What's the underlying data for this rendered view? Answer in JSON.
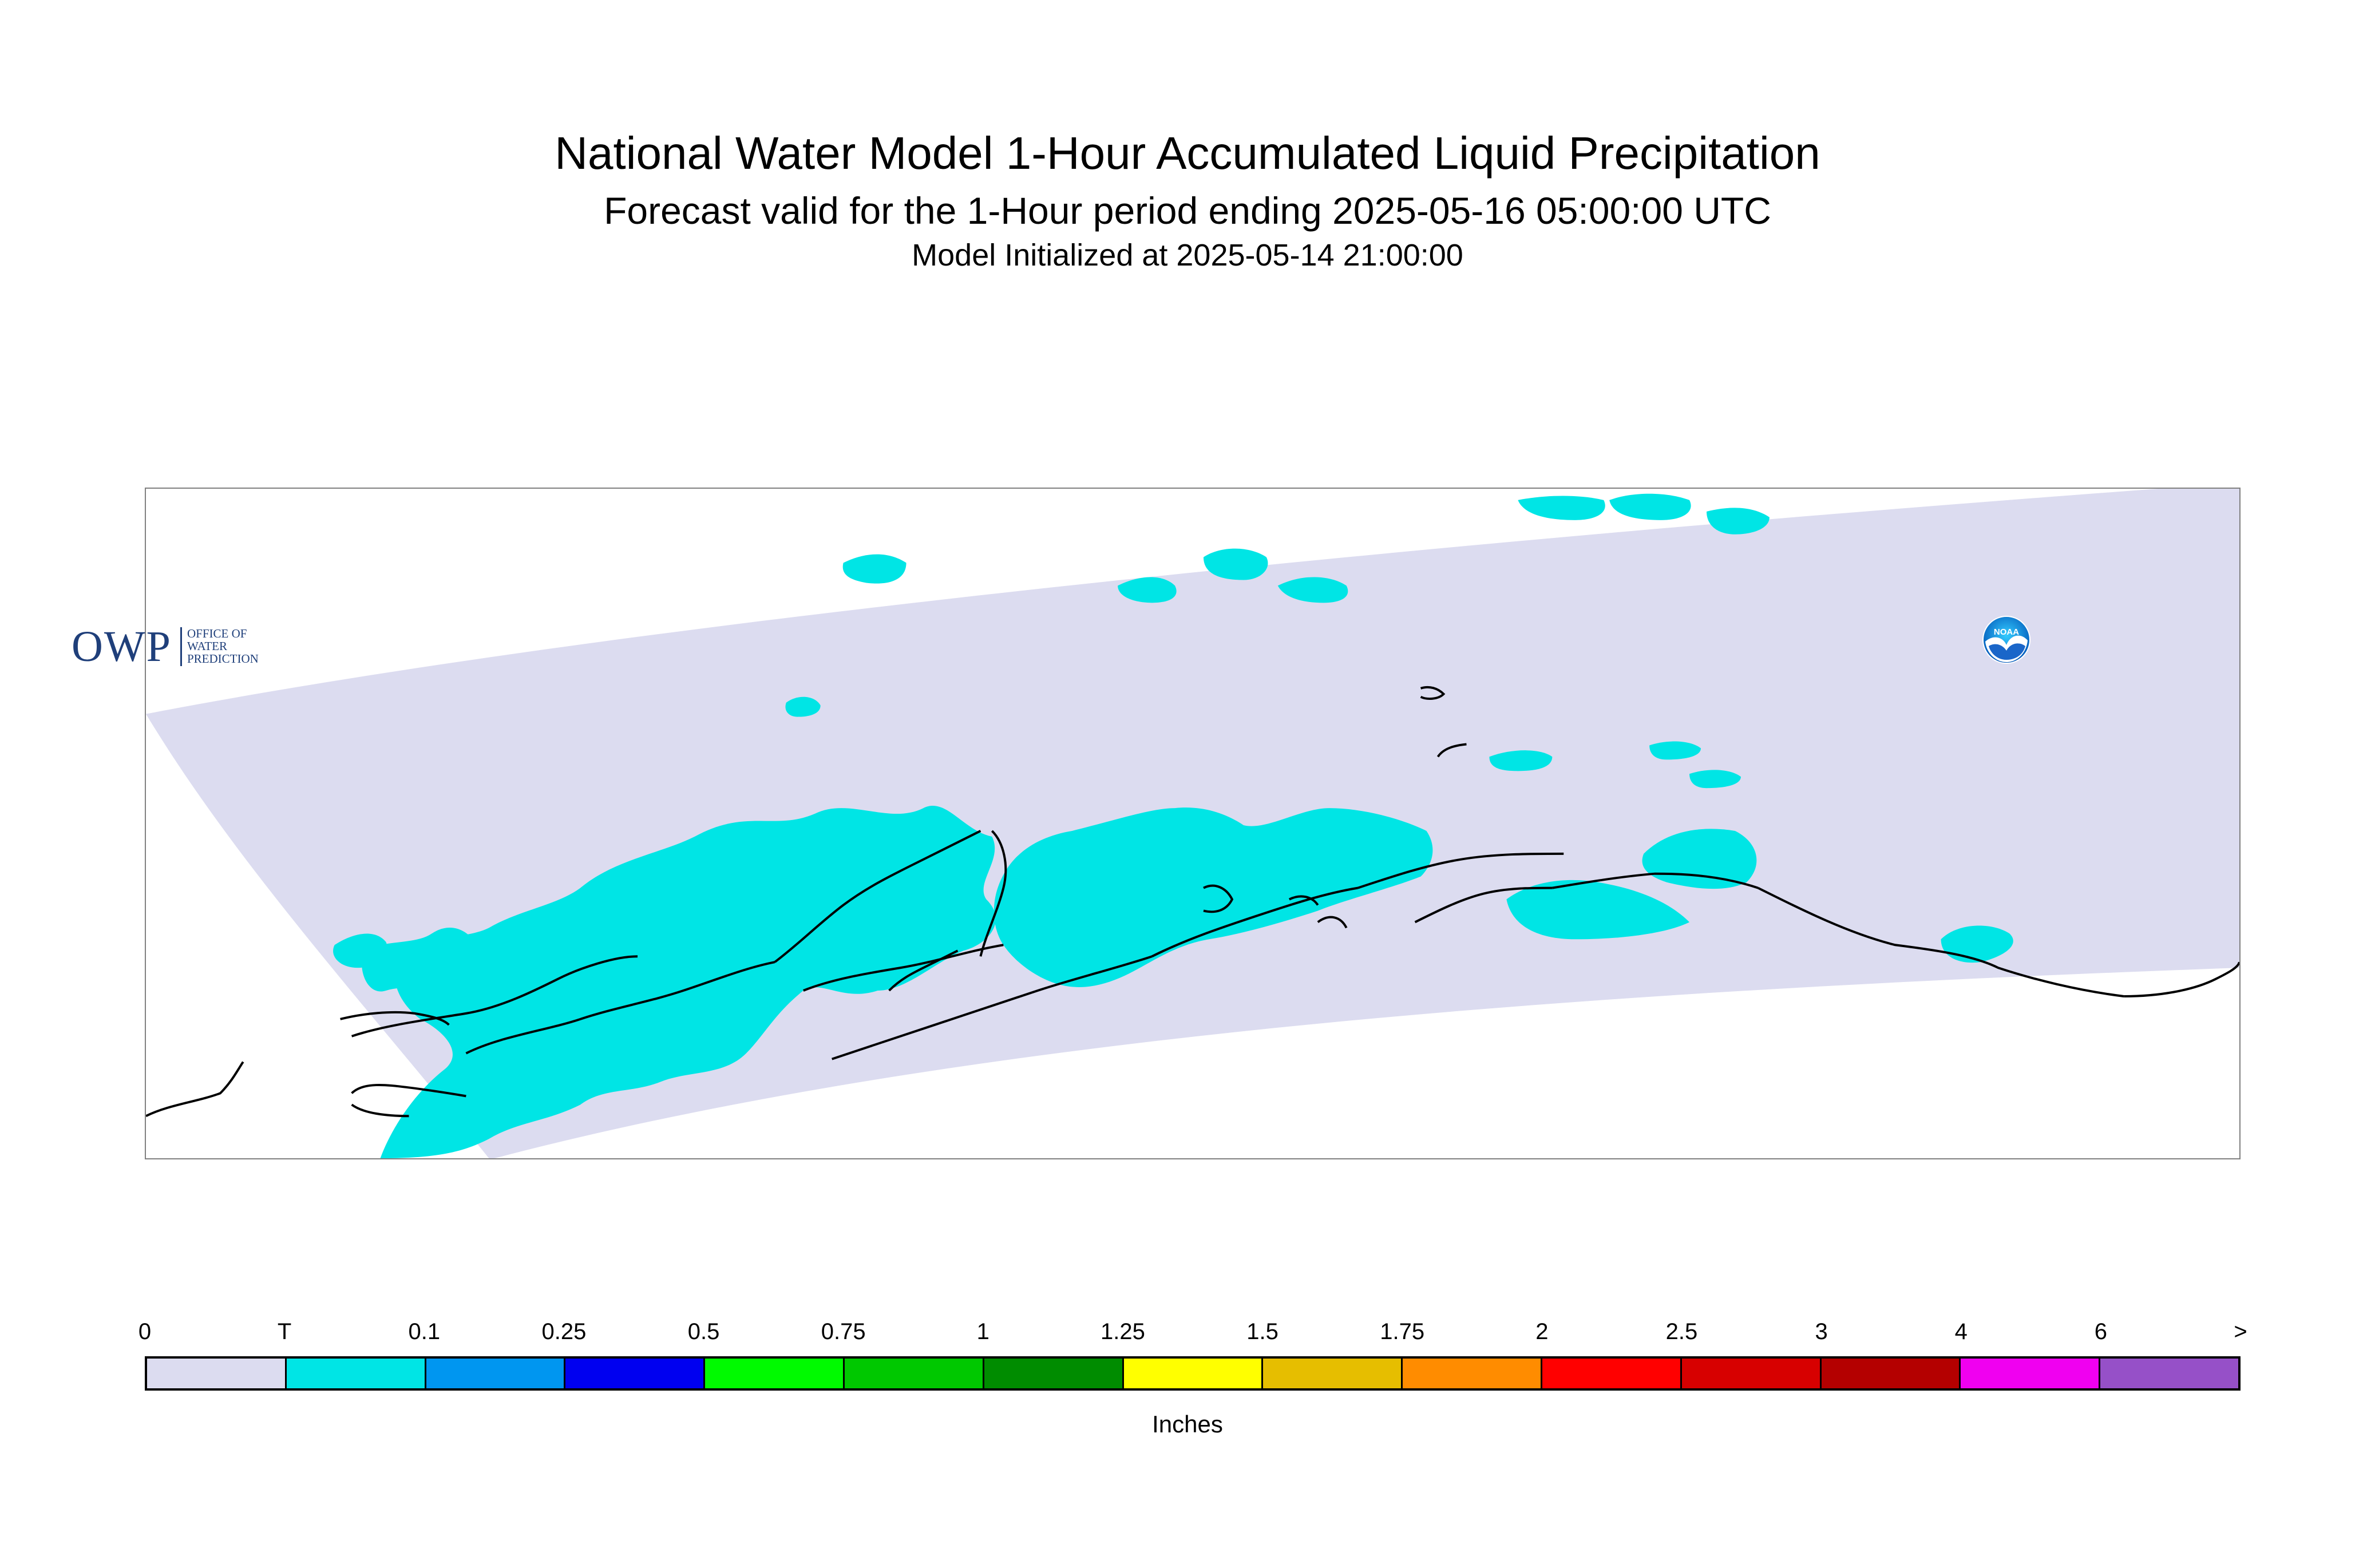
{
  "header": {
    "title": "National Water Model 1-Hour Accumulated Liquid Precipitation",
    "subtitle": "Forecast valid for the 1-Hour period ending 2025-05-16 05:00:00 UTC",
    "init_line": "Model Initialized at 2025-05-14 21:00:00"
  },
  "map": {
    "domain_fill_color": "#dcdcf0",
    "precip_fill_color": "#00e5e5",
    "coastline_color": "#000000"
  },
  "logos": {
    "owp": {
      "letters": "OWP",
      "line1": "OFFICE OF",
      "line2": "WATER",
      "line3": "PREDICTION"
    },
    "noaa": {
      "text": "NOAA"
    }
  },
  "legend": {
    "tick_labels": [
      "0",
      "T",
      "0.1",
      "0.25",
      "0.5",
      "0.75",
      "1",
      "1.25",
      "1.5",
      "1.75",
      "2",
      "2.5",
      "3",
      "4",
      "6",
      ">"
    ],
    "colors": [
      "#dcdcf0",
      "#00e5e5",
      "#0096f0",
      "#0000f0",
      "#00fa00",
      "#00c800",
      "#008c00",
      "#ffff00",
      "#e6be00",
      "#ff8c00",
      "#ff0000",
      "#d70000",
      "#b40000",
      "#f000f0",
      "#9650c8"
    ],
    "units_label": "Inches"
  }
}
